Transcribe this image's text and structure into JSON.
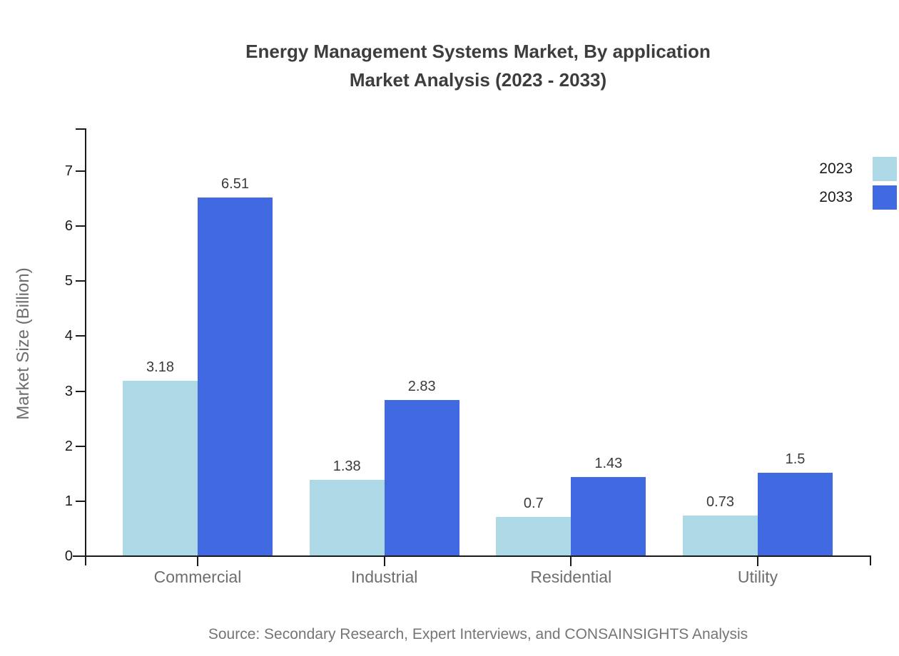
{
  "title": {
    "line1": "Energy Management Systems Market, By application",
    "line2": "Market Analysis (2023 - 2033)"
  },
  "y_axis": {
    "label": "Market Size (Billion)",
    "ticks": [
      "0",
      "1",
      "2",
      "3",
      "4",
      "5",
      "6",
      "7"
    ]
  },
  "legend": [
    {
      "label": "2023",
      "color": "#ADD8E6"
    },
    {
      "label": "2033",
      "color": "#4169E1"
    }
  ],
  "source": {
    "text": "Source: Secondary Research, Expert Interviews, and CONSAINSIGHTS Analysis"
  },
  "chart_data": {
    "type": "bar",
    "title": "Energy Management Systems Market, By application Market Analysis (2023 - 2033)",
    "categories": [
      "Commercial",
      "Industrial",
      "Residential",
      "Utility"
    ],
    "series": [
      {
        "name": "2023",
        "color": "#ADD8E6",
        "values": [
          3.18,
          1.38,
          0.7,
          0.73
        ]
      },
      {
        "name": "2033",
        "color": "#4169E1",
        "values": [
          6.51,
          2.83,
          1.43,
          1.5
        ]
      }
    ],
    "value_labels": [
      [
        "3.18",
        "1.38",
        "0.7",
        "0.73"
      ],
      [
        "6.51",
        "2.83",
        "1.43",
        "1.5"
      ]
    ],
    "xlabel": "",
    "ylabel": "Market Size (Billion)",
    "ylim": [
      0,
      7.8
    ],
    "ytick_values": [
      0,
      1,
      2,
      3,
      4,
      5,
      6,
      7
    ],
    "grid": false,
    "legend_position": "upper right",
    "value_labels_shown": true
  }
}
